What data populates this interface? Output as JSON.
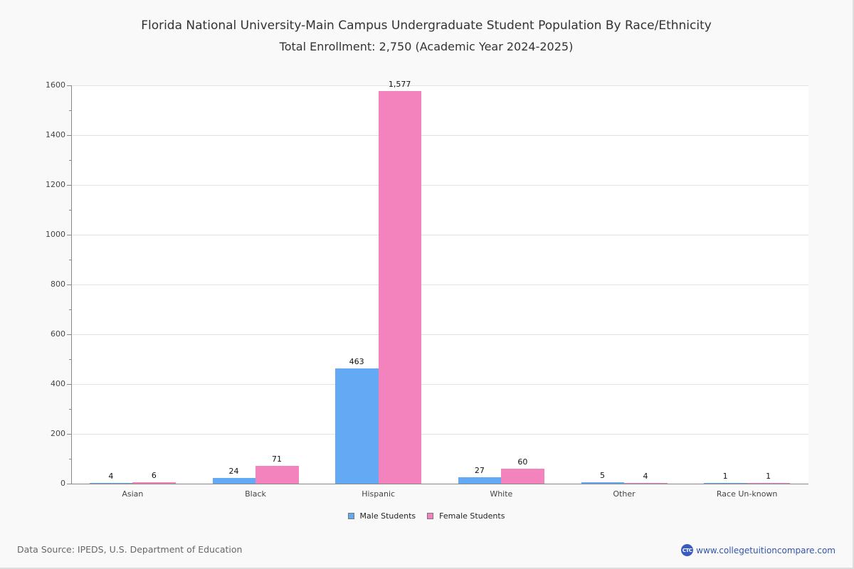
{
  "header": {
    "title": "Florida National University-Main Campus Undergraduate Student Population By Race/Ethnicity",
    "subtitle": "Total Enrollment: 2,750 (Academic Year 2024-2025)"
  },
  "axis": {
    "y_ticks": [
      "0",
      "200",
      "400",
      "600",
      "800",
      "1000",
      "1200",
      "1400",
      "1600"
    ]
  },
  "legend": {
    "male": "Male Students",
    "female": "Female Students"
  },
  "colors": {
    "male": "#63a9f4",
    "female": "#f283bc"
  },
  "categories": [
    {
      "label": "Asian",
      "male": 4,
      "female": 6,
      "male_label": "4",
      "female_label": "6"
    },
    {
      "label": "Black",
      "male": 24,
      "female": 71,
      "male_label": "24",
      "female_label": "71"
    },
    {
      "label": "Hispanic",
      "male": 463,
      "female": 1577,
      "male_label": "463",
      "female_label": "1,577"
    },
    {
      "label": "White",
      "male": 27,
      "female": 60,
      "male_label": "27",
      "female_label": "60"
    },
    {
      "label": "Other",
      "male": 5,
      "female": 4,
      "male_label": "5",
      "female_label": "4"
    },
    {
      "label": "Race Un-known",
      "male": 1,
      "female": 1,
      "male_label": "1",
      "female_label": "1"
    }
  ],
  "footer": {
    "source": "Data Source: IPEDS, U.S. Department of Education",
    "brand_logo": "CTC",
    "brand_url": "www.collegetuitioncompare.com"
  },
  "chart_data": {
    "type": "bar",
    "title": "Florida National University-Main Campus Undergraduate Student Population By Race/Ethnicity",
    "subtitle": "Total Enrollment: 2,750 (Academic Year 2024-2025)",
    "categories": [
      "Asian",
      "Black",
      "Hispanic",
      "White",
      "Other",
      "Race Un-known"
    ],
    "series": [
      {
        "name": "Male Students",
        "color": "#63a9f4",
        "values": [
          4,
          24,
          463,
          27,
          5,
          1
        ]
      },
      {
        "name": "Female Students",
        "color": "#f283bc",
        "values": [
          6,
          71,
          1577,
          60,
          4,
          1
        ]
      }
    ],
    "xlabel": "",
    "ylabel": "",
    "ylim": [
      0,
      1600
    ],
    "y_ticks": [
      0,
      200,
      400,
      600,
      800,
      1000,
      1200,
      1400,
      1600
    ],
    "grid": true,
    "legend_position": "bottom",
    "data_labels": true
  }
}
